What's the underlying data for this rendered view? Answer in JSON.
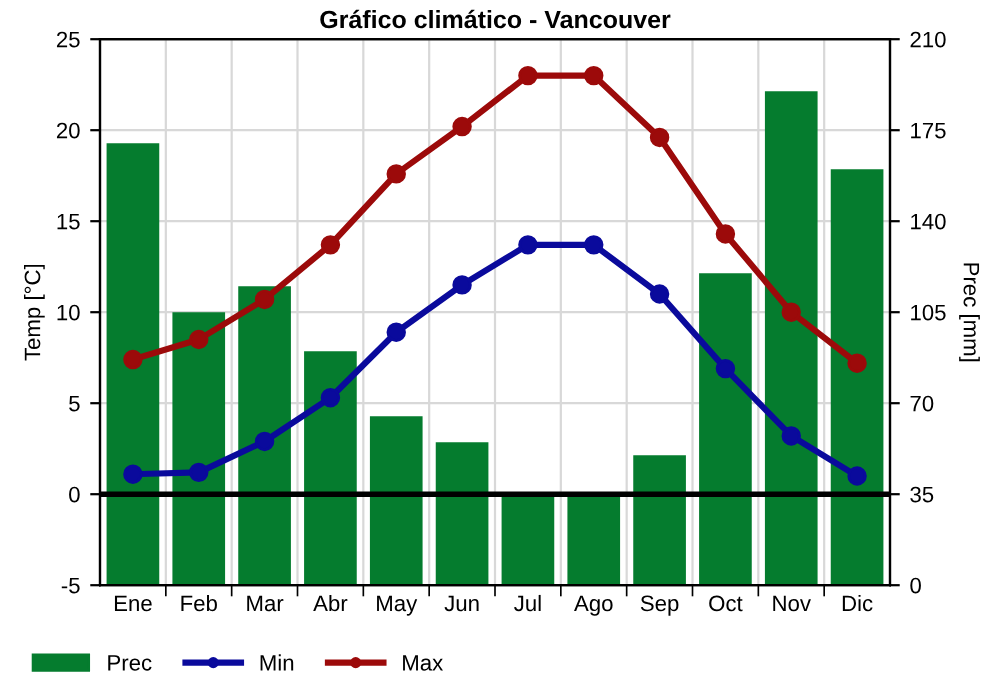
{
  "chart_data": {
    "type": "bar",
    "title": "Gráfico climático - Vancouver",
    "ylabel": "Temp [°C]",
    "y2label": "Prec [mm]",
    "categories": [
      "Ene",
      "Feb",
      "Mar",
      "Abr",
      "May",
      "Jun",
      "Jul",
      "Ago",
      "Sep",
      "Oct",
      "Nov",
      "Dic"
    ],
    "series": [
      {
        "name": "Prec",
        "axis": "y2",
        "color": "#057c2e",
        "values": [
          170,
          105,
          115,
          90,
          65,
          55,
          35,
          35,
          50,
          120,
          190,
          160
        ]
      },
      {
        "name": "Min",
        "type": "line",
        "axis": "y",
        "color": "#0a0a9c",
        "values": [
          1.1,
          1.2,
          2.9,
          5.3,
          8.9,
          11.5,
          13.7,
          13.7,
          11.0,
          6.9,
          3.2,
          1.0
        ]
      },
      {
        "name": "Max",
        "type": "line",
        "axis": "y",
        "color": "#9c0a0a",
        "values": [
          7.4,
          8.5,
          10.7,
          13.7,
          17.6,
          20.2,
          23.0,
          23.0,
          19.6,
          14.3,
          10.0,
          7.2
        ]
      }
    ],
    "ylim": [
      -5,
      25
    ],
    "yticks": [
      -5,
      0,
      5,
      10,
      15,
      20,
      25
    ],
    "y2lim": [
      0,
      210
    ],
    "y2ticks": [
      0,
      35,
      70,
      105,
      140,
      175,
      210
    ],
    "ref_lines": [
      {
        "axis": "y",
        "value": 0,
        "color": "#000000"
      }
    ],
    "grid": true,
    "legend": "bottom",
    "marker": "circle",
    "line_style": "solid"
  }
}
